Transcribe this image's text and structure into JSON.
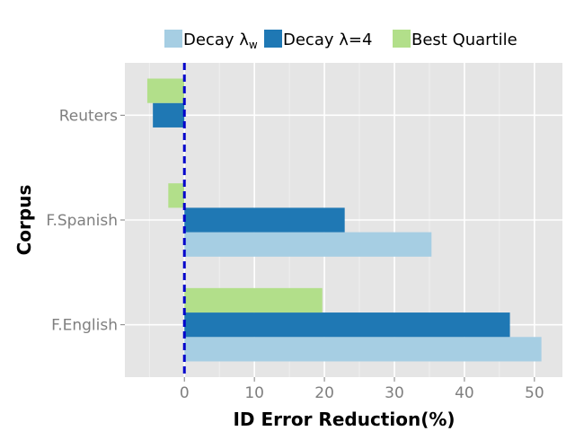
{
  "chart_data": {
    "type": "bar",
    "orientation": "horizontal",
    "categories": [
      "F.English",
      "F.Spanish",
      "Reuters"
    ],
    "series": [
      {
        "name": "Decay λ_w",
        "label_main": "Decay λ",
        "label_sub": "w",
        "color": "#a6cee3",
        "values": [
          51.0,
          35.3,
          null
        ]
      },
      {
        "name": "Decay λ=4",
        "label_main": "Decay λ=4",
        "label_sub": "",
        "color": "#1f78b4",
        "values": [
          46.5,
          22.9,
          -4.5
        ]
      },
      {
        "name": "Best Quartile",
        "label_main": "Best Quartile",
        "label_sub": "",
        "color": "#b2df8a",
        "values": [
          19.7,
          -2.3,
          -5.3
        ]
      }
    ],
    "xlabel": "ID Error Reduction(%)",
    "ylabel": "Corpus",
    "xlim": [
      -8.5,
      54
    ],
    "xticks": [
      0,
      10,
      20,
      30,
      40,
      50
    ],
    "reference_line": {
      "x": 0,
      "color": "#0000cc",
      "style": "dashed"
    },
    "grid": true,
    "legend_position": "top",
    "panel_background": "#e5e5e5"
  }
}
